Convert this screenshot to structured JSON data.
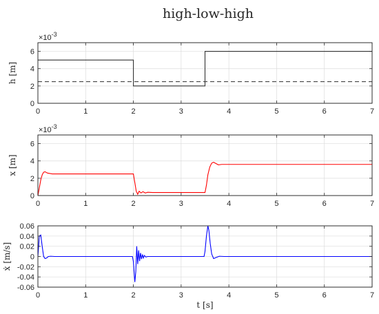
{
  "title": "high-low-high",
  "chart_data": [
    {
      "type": "line",
      "ylabel": "h [m]",
      "exponent_label": "×10",
      "exponent_power": "-3",
      "xlim": [
        0,
        7
      ],
      "ylim": [
        0,
        7
      ],
      "xticks": [
        0,
        1,
        2,
        3,
        4,
        5,
        6,
        7
      ],
      "yticks": [
        0,
        2,
        4,
        6
      ],
      "ytick_labels": [
        "0",
        "2",
        "4",
        "6"
      ],
      "grid": true,
      "series": [
        {
          "color": "#333333",
          "style": "solid",
          "x": [
            0,
            2,
            2,
            3.5,
            3.5,
            7
          ],
          "y": [
            5,
            5,
            2,
            2,
            6,
            6
          ]
        },
        {
          "color": "#444444",
          "style": "dashed",
          "x": [
            0,
            7
          ],
          "y": [
            2.5,
            2.5
          ]
        }
      ]
    },
    {
      "type": "line",
      "ylabel": "x [m]",
      "exponent_label": "×10",
      "exponent_power": "-3",
      "xlim": [
        0,
        7
      ],
      "ylim": [
        0,
        7
      ],
      "xticks": [
        0,
        1,
        2,
        3,
        4,
        5,
        6,
        7
      ],
      "yticks": [
        0,
        2,
        4,
        6
      ],
      "ytick_labels": [
        "0",
        "2",
        "4",
        "6"
      ],
      "grid": true,
      "series": [
        {
          "color": "#ff0000",
          "style": "solid",
          "x": [
            0,
            0.03,
            0.06,
            0.09,
            0.12,
            0.15,
            0.2,
            0.25,
            0.3,
            0.4,
            2.0,
            2.03,
            2.06,
            2.09,
            2.12,
            2.16,
            2.2,
            2.25,
            2.3,
            2.4,
            3.5,
            3.53,
            3.56,
            3.6,
            3.64,
            3.68,
            3.73,
            3.78,
            3.85,
            4.0,
            7.0
          ],
          "y": [
            0,
            0.9,
            1.8,
            2.4,
            2.7,
            2.75,
            2.6,
            2.55,
            2.5,
            2.5,
            2.5,
            1.5,
            0.5,
            0.15,
            0.5,
            0.3,
            0.45,
            0.3,
            0.38,
            0.35,
            0.35,
            1.2,
            2.4,
            3.3,
            3.75,
            3.85,
            3.7,
            3.55,
            3.6,
            3.6,
            3.6
          ]
        }
      ]
    },
    {
      "type": "line",
      "ylabel": "ẋ [m/s]",
      "xlabel": "t [s]",
      "xlim": [
        0,
        7
      ],
      "ylim": [
        -0.06,
        0.06
      ],
      "xticks": [
        0,
        1,
        2,
        3,
        4,
        5,
        6,
        7
      ],
      "yticks": [
        -0.06,
        -0.04,
        -0.02,
        0,
        0.02,
        0.04,
        0.06
      ],
      "ytick_labels": [
        "-0.06",
        "-0.04",
        "-0.02",
        "0",
        "0.02",
        "0.04",
        "0.06"
      ],
      "grid": true,
      "series": [
        {
          "color": "#0000ff",
          "style": "solid",
          "x": [
            0,
            0.03,
            0.06,
            0.09,
            0.12,
            0.15,
            0.18,
            0.22,
            0.27,
            0.35,
            1.98,
            2.0,
            2.03,
            2.05,
            2.07,
            2.09,
            2.11,
            2.13,
            2.15,
            2.17,
            2.19,
            2.21,
            2.23,
            2.26,
            2.3,
            2.4,
            3.48,
            3.5,
            3.53,
            3.56,
            3.58,
            3.61,
            3.64,
            3.68,
            3.73,
            3.8,
            3.9,
            7.0
          ],
          "y": [
            0,
            0.04,
            0.042,
            0.02,
            0.0,
            -0.004,
            -0.003,
            0.0,
            0.0005,
            0,
            0,
            -0.01,
            -0.05,
            -0.03,
            0.02,
            -0.015,
            0.012,
            -0.009,
            0.007,
            -0.005,
            0.004,
            -0.003,
            0.002,
            -0.001,
            0,
            0,
            0,
            0.01,
            0.04,
            0.06,
            0.052,
            0.025,
            0.005,
            -0.004,
            -0.002,
            0.0005,
            0,
            0
          ]
        }
      ]
    }
  ]
}
